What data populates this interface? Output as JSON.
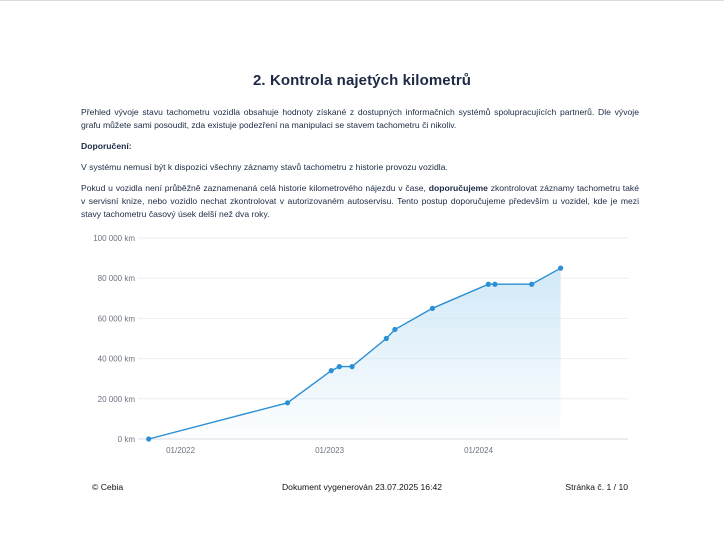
{
  "title": "2. Kontrola najetých kilometrů",
  "paragraphs": {
    "p1": "Přehled vývoje stavu tachometru vozidla obsahuje hodnoty získané z dostupných informačních systémů spolupracujících partnerů. Dle vývoje grafu můžete sami posoudit, zda existuje podezření na manipulaci se stavem tachometru či nikoliv.",
    "p2": "Doporučení:",
    "p3": "V systému nemusí být k dispozici všechny záznamy stavů tachometru z historie provozu vozidla.",
    "p4_a": "Pokud u vozidla není průběžně zaznamenaná celá historie kilometrového nájezdu v čase, ",
    "p4_b": "doporučujeme",
    "p4_c": " zkontrolovat záznamy tachometru také v servisní knize, nebo vozidlo nechat zkontrolovat v autorizovaném autoservisu. Tento postup doporučujeme především u vozidel, kde je mezi stavy tachometru časový úsek delší než dva roky."
  },
  "chart_data": {
    "type": "area",
    "y_ticks": [
      "0 km",
      "20 000 km",
      "40 000 km",
      "60 000 km",
      "80 000 km",
      "100 000 km"
    ],
    "ylim": [
      0,
      100000
    ],
    "x_ticks": [
      {
        "label": "01/2022",
        "date": "2022-01-01"
      },
      {
        "label": "01/2023",
        "date": "2023-01-01"
      },
      {
        "label": "01/2024",
        "date": "2024-01-01"
      }
    ],
    "xlim": [
      "2021-10-01",
      "2025-01-01"
    ],
    "grid": true,
    "line_color": "#2a8fd4",
    "fill_color": "#cfe8f7",
    "points": [
      {
        "x": "2021-10-15",
        "y": 0
      },
      {
        "x": "2022-09-20",
        "y": 18000
      },
      {
        "x": "2023-01-05",
        "y": 34000
      },
      {
        "x": "2023-01-25",
        "y": 36000
      },
      {
        "x": "2023-02-25",
        "y": 36000
      },
      {
        "x": "2023-05-20",
        "y": 50000
      },
      {
        "x": "2023-06-10",
        "y": 54500
      },
      {
        "x": "2023-09-10",
        "y": 65000
      },
      {
        "x": "2024-01-25",
        "y": 77000
      },
      {
        "x": "2024-02-10",
        "y": 77000
      },
      {
        "x": "2024-05-10",
        "y": 77000
      },
      {
        "x": "2024-07-20",
        "y": 85000
      }
    ]
  },
  "footer": {
    "left": "© Cebia",
    "center": "Dokument vygenerován 23.07.2025 16:42",
    "right": "Stránka č. 1 / 10"
  }
}
